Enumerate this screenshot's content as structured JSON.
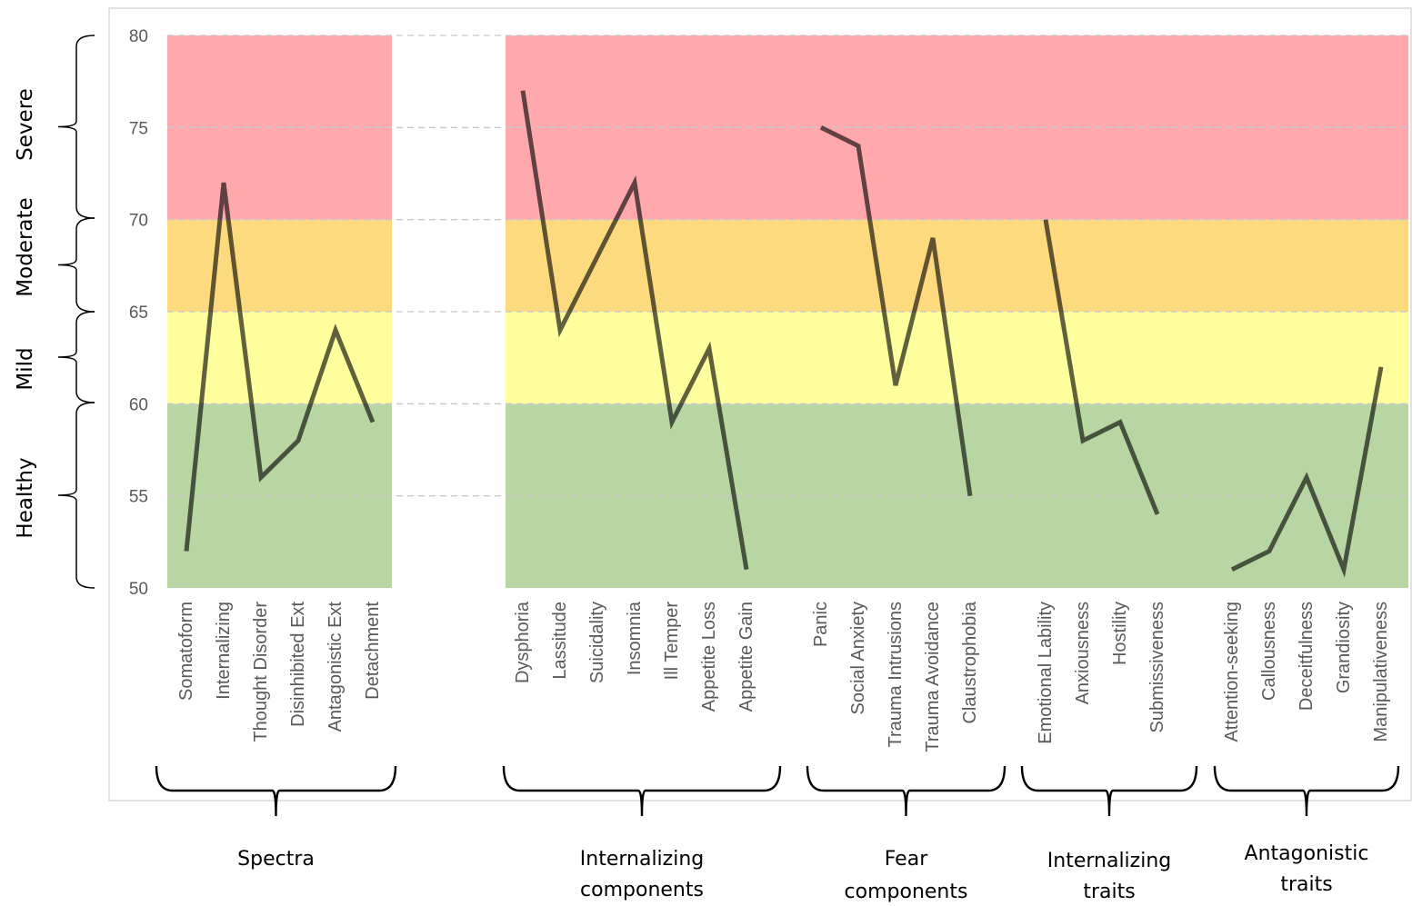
{
  "chart_data": {
    "type": "line",
    "ylim": [
      50,
      80
    ],
    "yticks": [
      50,
      55,
      60,
      65,
      70,
      75,
      80
    ],
    "grid": "horizontal dashed",
    "severity_bands": [
      {
        "label": "Healthy",
        "from": 50,
        "to": 60,
        "color": "#b8d6a4"
      },
      {
        "label": "Mild",
        "from": 60,
        "to": 65,
        "color": "#ffff9e"
      },
      {
        "label": "Moderate",
        "from": 65,
        "to": 70,
        "color": "#fdda7e"
      },
      {
        "label": "Severe",
        "from": 70,
        "to": 80,
        "color": "#ffa9ad"
      }
    ],
    "groups": [
      {
        "label": "Spectra",
        "categories": [
          "Somatoform",
          "Internalizing",
          "Thought Disorder",
          "Disinhibited Ext",
          "Antagonistic Ext",
          "Detachment"
        ],
        "values": [
          52,
          72,
          56,
          58,
          64,
          59
        ]
      },
      {
        "label": "Internalizing components",
        "categories": [
          "Dysphoria",
          "Lassitude",
          "Suicidality",
          "Insomnia",
          "Ill Temper",
          "Appetite Loss",
          "Appetite Gain"
        ],
        "values": [
          77,
          64,
          68,
          72,
          59,
          63,
          51
        ]
      },
      {
        "label": "Fear components",
        "categories": [
          "Panic",
          "Social Anxiety",
          "Trauma Intrusions",
          "Trauma Avoidance",
          "Claustrophobia"
        ],
        "values": [
          75,
          74,
          61,
          69,
          55
        ]
      },
      {
        "label": "Internalizing traits",
        "categories": [
          "Emotional Lability",
          "Anxiousness",
          "Hostility",
          "Submissiveness"
        ],
        "values": [
          70,
          58,
          59,
          54
        ]
      },
      {
        "label": "Antagonistic traits",
        "categories": [
          "Attention-seeking",
          "Callousness",
          "Deceitfulness",
          "Grandiosity",
          "Manipulativeness"
        ],
        "values": [
          51,
          52,
          56,
          51,
          62
        ]
      }
    ]
  }
}
